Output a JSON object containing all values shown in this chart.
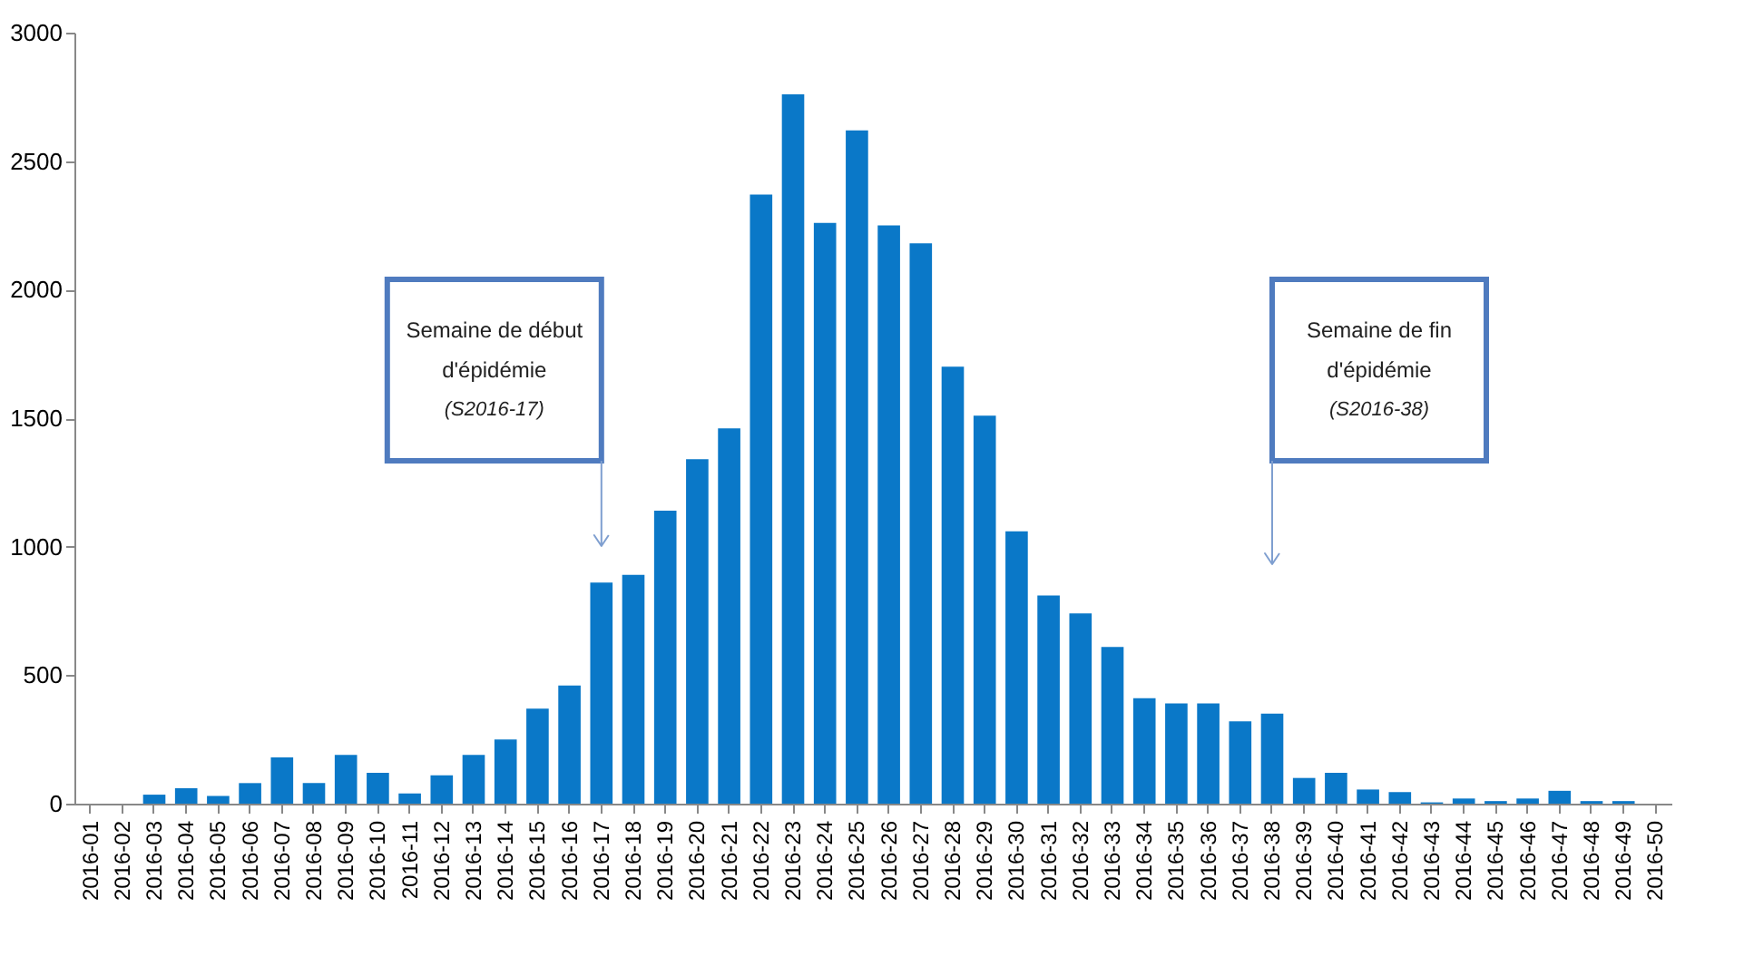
{
  "chart_data": {
    "type": "bar",
    "categories": [
      "2016-01",
      "2016-02",
      "2016-03",
      "2016-04",
      "2016-05",
      "2016-06",
      "2016-07",
      "2016-08",
      "2016-09",
      "2016-10",
      "2016-11",
      "2016-12",
      "2016-13",
      "2016-14",
      "2016-15",
      "2016-16",
      "2016-17",
      "2016-18",
      "2016-19",
      "2016-20",
      "2016-21",
      "2016-22",
      "2016-23",
      "2016-24",
      "2016-25",
      "2016-26",
      "2016-27",
      "2016-28",
      "2016-29",
      "2016-30",
      "2016-31",
      "2016-32",
      "2016-33",
      "2016-34",
      "2016-35",
      "2016-36",
      "2016-37",
      "2016-38",
      "2016-39",
      "2016-40",
      "2016-41",
      "2016-42",
      "2016-43",
      "2016-44",
      "2016-45",
      "2016-46",
      "2016-47",
      "2016-48",
      "2016-49",
      "2016-50"
    ],
    "values": [
      0,
      0,
      35,
      60,
      30,
      80,
      180,
      80,
      190,
      120,
      40,
      110,
      190,
      250,
      370,
      460,
      860,
      890,
      1140,
      1340,
      1460,
      2370,
      2760,
      2260,
      2620,
      2250,
      2180,
      1700,
      1510,
      1060,
      810,
      740,
      610,
      410,
      390,
      390,
      320,
      350,
      100,
      120,
      55,
      45,
      5,
      20,
      10,
      20,
      50,
      10,
      10,
      0
    ],
    "color": "#0a78c8",
    "ylim": [
      0,
      3000
    ],
    "yticks": [
      0,
      500,
      1000,
      1500,
      2000,
      2500,
      3000
    ],
    "grid": false,
    "ref_lines": [
      {
        "axis": "x",
        "value": "2016-17",
        "label": "Semaine de  début\nd'épidémie\n(S2016-17)",
        "color": "#7f9fd0"
      },
      {
        "axis": "x",
        "value": "2016-38",
        "label": "Semaine de  fin\nd'épidémie\n(S2016-38)",
        "color": "#7f9fd0"
      }
    ]
  }
}
